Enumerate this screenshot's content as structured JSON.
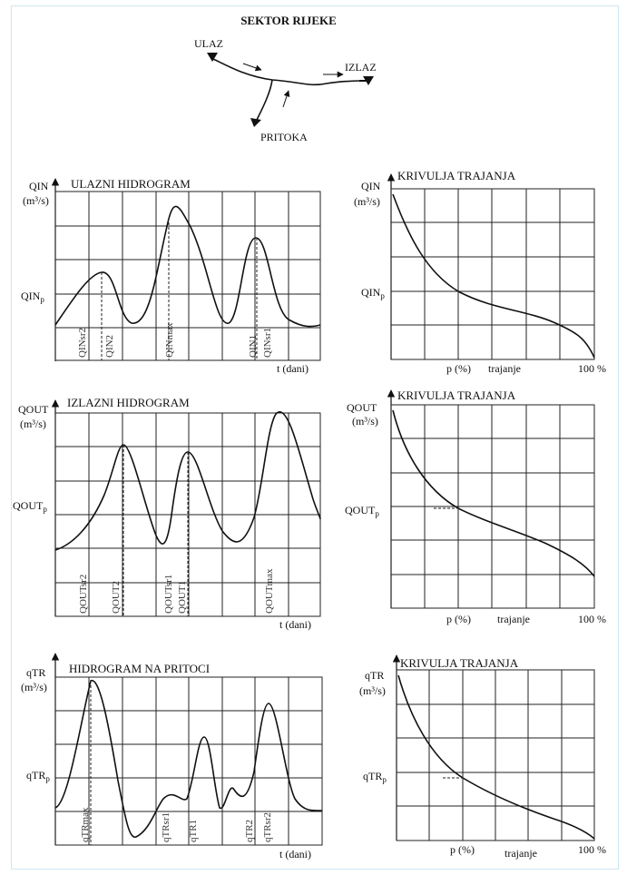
{
  "diagram": {
    "title": "SEKTOR RIJEKE",
    "river_labels": {
      "inlet": "ULAZ",
      "outlet": "IZLAZ",
      "tributary": "PRITOKA"
    }
  },
  "panels": [
    {
      "id": "inflow",
      "title": "ULAZNI HIDROGRAM",
      "y_label": "QIN",
      "y_unit": "(m³/s)",
      "y_mark": "QIN",
      "y_mark_sub": "p",
      "x_label": "t (dani)",
      "markers": [
        "QINsr2",
        "QIN2",
        "QINmax",
        "QIN1",
        "QINsr1"
      ]
    },
    {
      "id": "inflow-duration",
      "title": "KRIVULJA TRAJANJA",
      "y_label": "QIN",
      "y_unit": "(m³/s)",
      "y_mark": "QIN",
      "y_mark_sub": "p",
      "x_labels": [
        "p (%)",
        "trajanje",
        "100 %"
      ]
    },
    {
      "id": "outflow",
      "title": "IZLAZNI HIDROGRAM",
      "y_label": "QOUT",
      "y_unit": "(m³/s)",
      "y_mark": "QOUT",
      "y_mark_sub": "p",
      "x_label": "t (dani)",
      "markers": [
        "QOUTsr2",
        "QOUT2",
        "QOUTsr1",
        "QOUT1",
        "QOUTmax"
      ]
    },
    {
      "id": "outflow-duration",
      "title": "KRIVULJA TRAJANJA",
      "y_label": "QOUT",
      "y_unit": "(m³/s)",
      "y_mark": "QOUT",
      "y_mark_sub": "p",
      "x_labels": [
        "p (%)",
        "trajanje",
        "100 %"
      ]
    },
    {
      "id": "tributary",
      "title": "HIDROGRAM NA PRITOCI",
      "y_label": "qTR",
      "y_unit": "(m³/s)",
      "y_mark": "qTR",
      "y_mark_sub": "p",
      "x_label": "t (dani)",
      "markers": [
        "qTRmax",
        "qTRsr1",
        "qTR1",
        "qTR2",
        "qTRsr2"
      ]
    },
    {
      "id": "tributary-duration",
      "title": "KRIVULJA TRAJANJA",
      "y_label": "qTR",
      "y_unit": "(m³/s)",
      "y_mark": "qTR",
      "y_mark_sub": "p",
      "x_labels": [
        "p (%)",
        "trajanje",
        "100 %"
      ]
    }
  ]
}
